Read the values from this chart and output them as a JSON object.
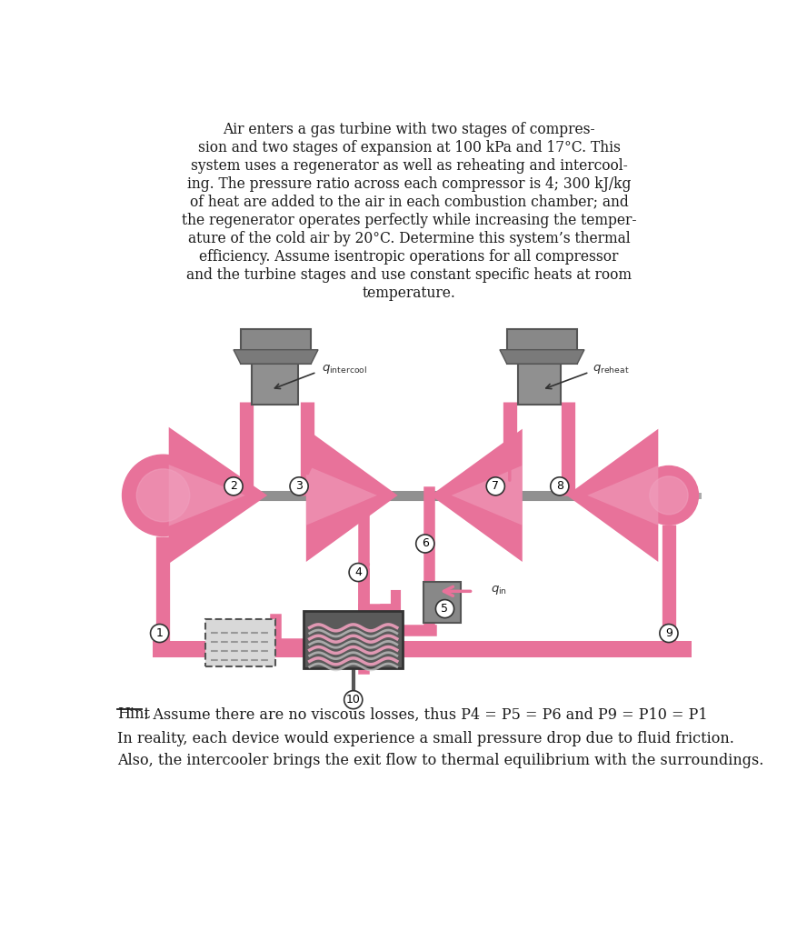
{
  "bg_color": "#ffffff",
  "text_color": "#1a1a1a",
  "pink_color": "#e8729a",
  "pink_light": "#f0a0be",
  "pink_dark": "#d45080",
  "gray_color": "#808080",
  "gray_light": "#b0b0b0",
  "gray_dark": "#606060",
  "para_lines": [
    "Air enters a gas turbine with two stages of compres-",
    "sion and two stages of expansion at 100 kPa and 17°C. This",
    "system uses a regenerator as well as reheating and intercool-",
    "ing. The pressure ratio across each compressor is 4; 300 kJ/kg",
    "of heat are added to the air in each combustion chamber; and",
    "the regenerator operates perfectly while increasing the temper-",
    "ature of the cold air by 20°C. Determine this system’s thermal",
    "efficiency. Assume isentropic operations for all compressor",
    "and the turbine stages and use constant specific heats at room",
    "temperature."
  ],
  "hint_text": ": Assume there are no viscous losses, thus P4 = P5 = P6 and P9 = P10 = P1",
  "line2_text": "In reality, each device would experience a small pressure drop due to fluid friction.",
  "line3_text": "Also, the intercooler brings the exit flow to thermal equilibrium with the surroundings."
}
